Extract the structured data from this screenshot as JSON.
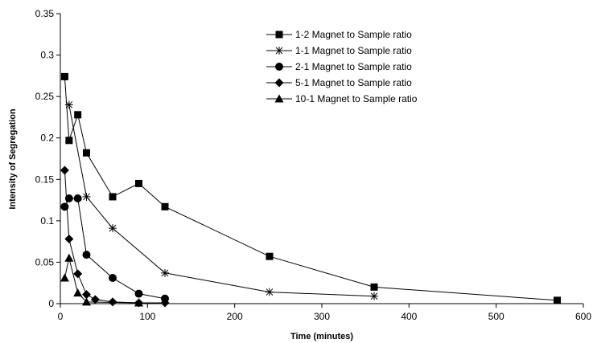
{
  "chart_data": {
    "type": "line",
    "title": "",
    "xlabel": "Time (minutes)",
    "ylabel": "Intensity of Segregation",
    "xlim": [
      0,
      600
    ],
    "ylim": [
      0,
      0.35
    ],
    "x_ticks": [
      "0",
      "100",
      "200",
      "300",
      "400",
      "500",
      "600"
    ],
    "y_ticks": [
      "0",
      "0.05",
      "0.1",
      "0.15",
      "0.2",
      "0.25",
      "0.3",
      "0.35"
    ],
    "grid": false,
    "legend_position": "top-right",
    "series": [
      {
        "name": "1-2 Magnet to Sample ratio",
        "marker": "square",
        "points": [
          [
            5,
            0.274
          ],
          [
            10,
            0.197
          ],
          [
            20,
            0.228
          ],
          [
            30,
            0.182
          ],
          [
            60,
            0.129
          ],
          [
            90,
            0.145
          ],
          [
            120,
            0.117
          ],
          [
            240,
            0.057
          ],
          [
            360,
            0.02
          ],
          [
            570,
            0.004
          ]
        ]
      },
      {
        "name": "1-1 Magnet to Sample ratio",
        "marker": "star",
        "points": [
          [
            10,
            0.24
          ],
          [
            30,
            0.129
          ],
          [
            60,
            0.091
          ],
          [
            120,
            0.037
          ],
          [
            240,
            0.014
          ],
          [
            360,
            0.009
          ]
        ]
      },
      {
        "name": "2-1 Magnet to Sample ratio",
        "marker": "circle",
        "points": [
          [
            5,
            0.117
          ],
          [
            10,
            0.127
          ],
          [
            20,
            0.127
          ],
          [
            30,
            0.059
          ],
          [
            60,
            0.031
          ],
          [
            90,
            0.012
          ],
          [
            120,
            0.006
          ]
        ]
      },
      {
        "name": "5-1 Magnet to Sample ratio",
        "marker": "diamond",
        "points": [
          [
            5,
            0.161
          ],
          [
            10,
            0.078
          ],
          [
            20,
            0.036
          ],
          [
            30,
            0.011
          ],
          [
            40,
            0.005
          ],
          [
            60,
            0.002
          ],
          [
            90,
            0.001
          ],
          [
            120,
            0.001
          ]
        ]
      },
      {
        "name": "10-1 Magnet to Sample ratio",
        "marker": "triangle",
        "points": [
          [
            5,
            0.031
          ],
          [
            10,
            0.055
          ],
          [
            20,
            0.013
          ],
          [
            30,
            0.002
          ],
          [
            90,
            0.001
          ]
        ]
      }
    ]
  }
}
